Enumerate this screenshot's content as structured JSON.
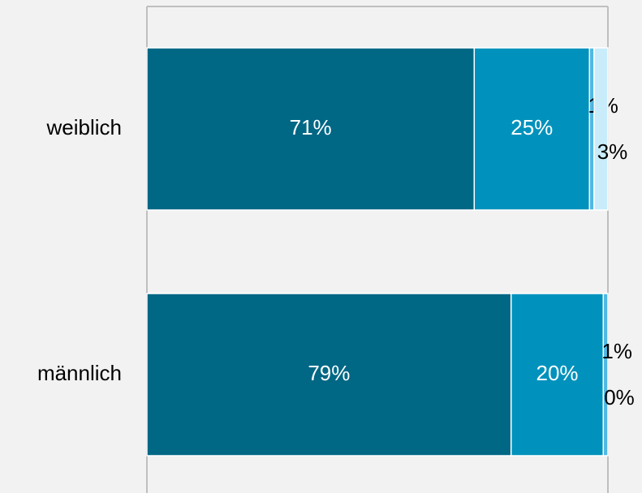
{
  "chart_data": {
    "type": "bar",
    "orientation": "horizontal",
    "stacked": true,
    "categories": [
      "weiblich",
      "männlich"
    ],
    "xlim": [
      0,
      100
    ],
    "series": [
      {
        "color": "#006785",
        "values": [
          71,
          79
        ],
        "value_labels": [
          "71%",
          "79%"
        ]
      },
      {
        "color": "#0092bc",
        "values": [
          25,
          20
        ],
        "value_labels": [
          "25%",
          "20%"
        ]
      },
      {
        "color": "#4fb8e3",
        "values": [
          1,
          1
        ],
        "value_labels": [
          "1%",
          "1%"
        ]
      },
      {
        "color": "#c8ecfa",
        "values": [
          3,
          0
        ],
        "value_labels": [
          "3%",
          "0%"
        ]
      }
    ]
  }
}
